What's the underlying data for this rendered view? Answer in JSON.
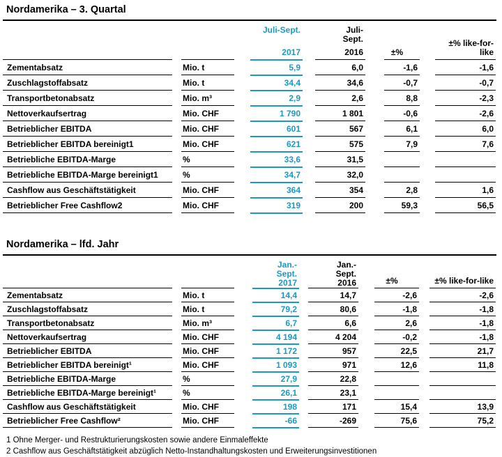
{
  "accent_color": "#1d98c4",
  "table1": {
    "title": "Nordamerika – 3. Quartal",
    "header": {
      "period_2017": "Juli-Sept.",
      "year_2017": "2017",
      "period_2016": "Juli-\nSept.",
      "year_2016": "2016",
      "pct": "±%",
      "lfl": "±% like-for-\nlike"
    },
    "rows": [
      {
        "label": "Zementabsatz",
        "unit": "Mio. t",
        "v2017": "5,9",
        "v2016": "6,0",
        "pct": "-1,6",
        "lfl": "-1,6"
      },
      {
        "label": "Zuschlagstoffabsatz",
        "unit": "Mio. t",
        "v2017": "34,4",
        "v2016": "34,6",
        "pct": "-0,7",
        "lfl": "-0,7"
      },
      {
        "label": "Transportbetonabsatz",
        "unit": "Mio. m³",
        "v2017": "2,9",
        "v2016": "2,6",
        "pct": "8,8",
        "lfl": "-2,3"
      },
      {
        "label": "Nettoverkaufsertrag",
        "unit": "Mio. CHF",
        "v2017": "1 790",
        "v2016": "1 801",
        "pct": "-0,6",
        "lfl": "-2,6"
      },
      {
        "label": "Betrieblicher EBITDA",
        "unit": "Mio. CHF",
        "v2017": "601",
        "v2016": "567",
        "pct": "6,1",
        "lfl": "6,0"
      },
      {
        "label": "Betrieblicher EBITDA bereinigt1",
        "unit": "Mio. CHF",
        "v2017": "621",
        "v2016": "575",
        "pct": "7,9",
        "lfl": "7,6"
      },
      {
        "label": "Betriebliche EBITDA-Marge",
        "unit": "%",
        "v2017": "33,6",
        "v2016": "31,5",
        "pct": "",
        "lfl": ""
      },
      {
        "label": "Betriebliche EBITDA-Marge bereinigt1",
        "unit": "%",
        "v2017": "34,7",
        "v2016": "32,0",
        "pct": "",
        "lfl": ""
      },
      {
        "label": "Cashflow aus Geschäftstätigkeit",
        "unit": "Mio. CHF",
        "v2017": "364",
        "v2016": "354",
        "pct": "2,8",
        "lfl": "1,6"
      },
      {
        "label": "Betrieblicher Free Cashflow2",
        "unit": "Mio. CHF",
        "v2017": "319",
        "v2016": "200",
        "pct": "59,3",
        "lfl": "56,5"
      }
    ]
  },
  "table2": {
    "title": "Nordamerika – lfd. Jahr",
    "header": {
      "period_2017": "Jan.-\nSept.",
      "year_2017": "2017",
      "period_2016": "Jan.-\nSept.",
      "year_2016": "2016",
      "pct": "±%",
      "lfl": "±% like-for-like"
    },
    "rows": [
      {
        "label": "Zementabsatz",
        "unit": "Mio. t",
        "v2017": "14,4",
        "v2016": "14,7",
        "pct": "-2,6",
        "lfl": "-2,6"
      },
      {
        "label": "Zuschlagstoffabsatz",
        "unit": "Mio. t",
        "v2017": "79,2",
        "v2016": "80,6",
        "pct": "-1,8",
        "lfl": "-1,8"
      },
      {
        "label": "Transportbetonabsatz",
        "unit": "Mio. m³",
        "v2017": "6,7",
        "v2016": "6,6",
        "pct": "2,6",
        "lfl": "-1,8"
      },
      {
        "label": "Nettoverkaufsertrag",
        "unit": "Mio. CHF",
        "v2017": "4 194",
        "v2016": "4 204",
        "pct": "-0,2",
        "lfl": "-1,8"
      },
      {
        "label": "Betrieblicher EBITDA",
        "unit": "Mio. CHF",
        "v2017": "1 172",
        "v2016": "957",
        "pct": "22,5",
        "lfl": "21,7"
      },
      {
        "label": "Betrieblicher EBITDA bereinigt¹",
        "unit": "Mio. CHF",
        "v2017": "1 093",
        "v2016": "971",
        "pct": "12,6",
        "lfl": "11,8"
      },
      {
        "label": "Betriebliche EBITDA-Marge",
        "unit": "%",
        "v2017": "27,9",
        "v2016": "22,8",
        "pct": "",
        "lfl": ""
      },
      {
        "label": "Betriebliche EBITDA-Marge bereinigt¹",
        "unit": "%",
        "v2017": "26,1",
        "v2016": "23,1",
        "pct": "",
        "lfl": ""
      },
      {
        "label": "Cashflow aus Geschäftstätigkeit",
        "unit": "Mio. CHF",
        "v2017": "198",
        "v2016": "171",
        "pct": "15,4",
        "lfl": "13,9"
      },
      {
        "label": "Betrieblicher Free Cashflow²",
        "unit": "Mio. CHF",
        "v2017": "-66",
        "v2016": "-269",
        "pct": "75,6",
        "lfl": "75,2"
      }
    ]
  },
  "footnotes": [
    "1 Ohne Merger- und Restrukturierungskosten sowie andere Einmaleffekte",
    "2 Cashflow aus Geschäftstätigkeit abzüglich Netto-Instandhaltungskosten und Erweiterungsinvestitionen"
  ]
}
